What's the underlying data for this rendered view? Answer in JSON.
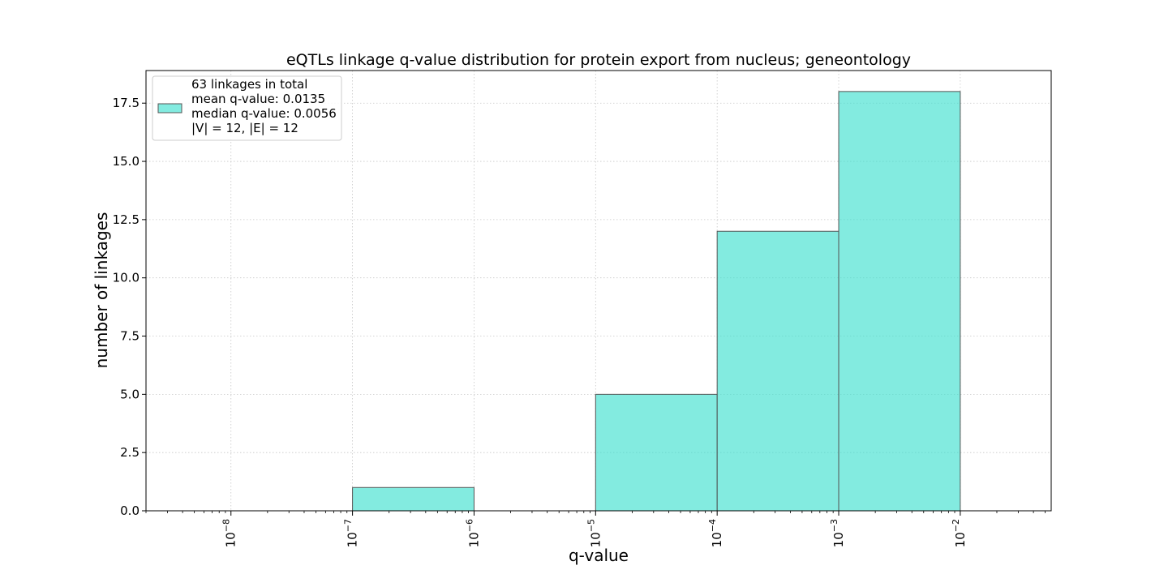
{
  "chart_data": {
    "type": "bar",
    "title": "eQTLs linkage q-value distribution for protein export from nucleus; geneontology",
    "xlabel": "q-value",
    "ylabel": "number of linkages",
    "x_scale": "log",
    "xlim": [
      2e-09,
      0.056
    ],
    "ylim": [
      0,
      18.9
    ],
    "grid": true,
    "bar_color": "#40e0d0",
    "bar_edge_color": "#555555",
    "bins": [
      {
        "x0": 1e-07,
        "x1": 1e-06,
        "value": 1
      },
      {
        "x0": 1e-05,
        "x1": 0.0001,
        "value": 5
      },
      {
        "x0": 0.0001,
        "x1": 0.001,
        "value": 12
      },
      {
        "x0": 0.001,
        "x1": 0.01,
        "value": 18
      }
    ],
    "x_ticks": [
      {
        "value": 1e-08,
        "base": "10",
        "exp": "−8"
      },
      {
        "value": 1e-07,
        "base": "10",
        "exp": "−7"
      },
      {
        "value": 1e-06,
        "base": "10",
        "exp": "−6"
      },
      {
        "value": 1e-05,
        "base": "10",
        "exp": "−5"
      },
      {
        "value": 0.0001,
        "base": "10",
        "exp": "−4"
      },
      {
        "value": 0.001,
        "base": "10",
        "exp": "−3"
      },
      {
        "value": 0.01,
        "base": "10",
        "exp": "−2"
      }
    ],
    "y_ticks": [
      {
        "value": 0,
        "label": "0.0"
      },
      {
        "value": 2.5,
        "label": "2.5"
      },
      {
        "value": 5,
        "label": "5.0"
      },
      {
        "value": 7.5,
        "label": "7.5"
      },
      {
        "value": 10,
        "label": "10.0"
      },
      {
        "value": 12.5,
        "label": "12.5"
      },
      {
        "value": 15,
        "label": "15.0"
      },
      {
        "value": 17.5,
        "label": "17.5"
      }
    ],
    "legend": {
      "placement": "top-left",
      "lines": [
        "63 linkages in total",
        "mean q-value: 0.0135",
        "median q-value: 0.0056",
        "|V| = 12, |E| = 12"
      ]
    }
  }
}
